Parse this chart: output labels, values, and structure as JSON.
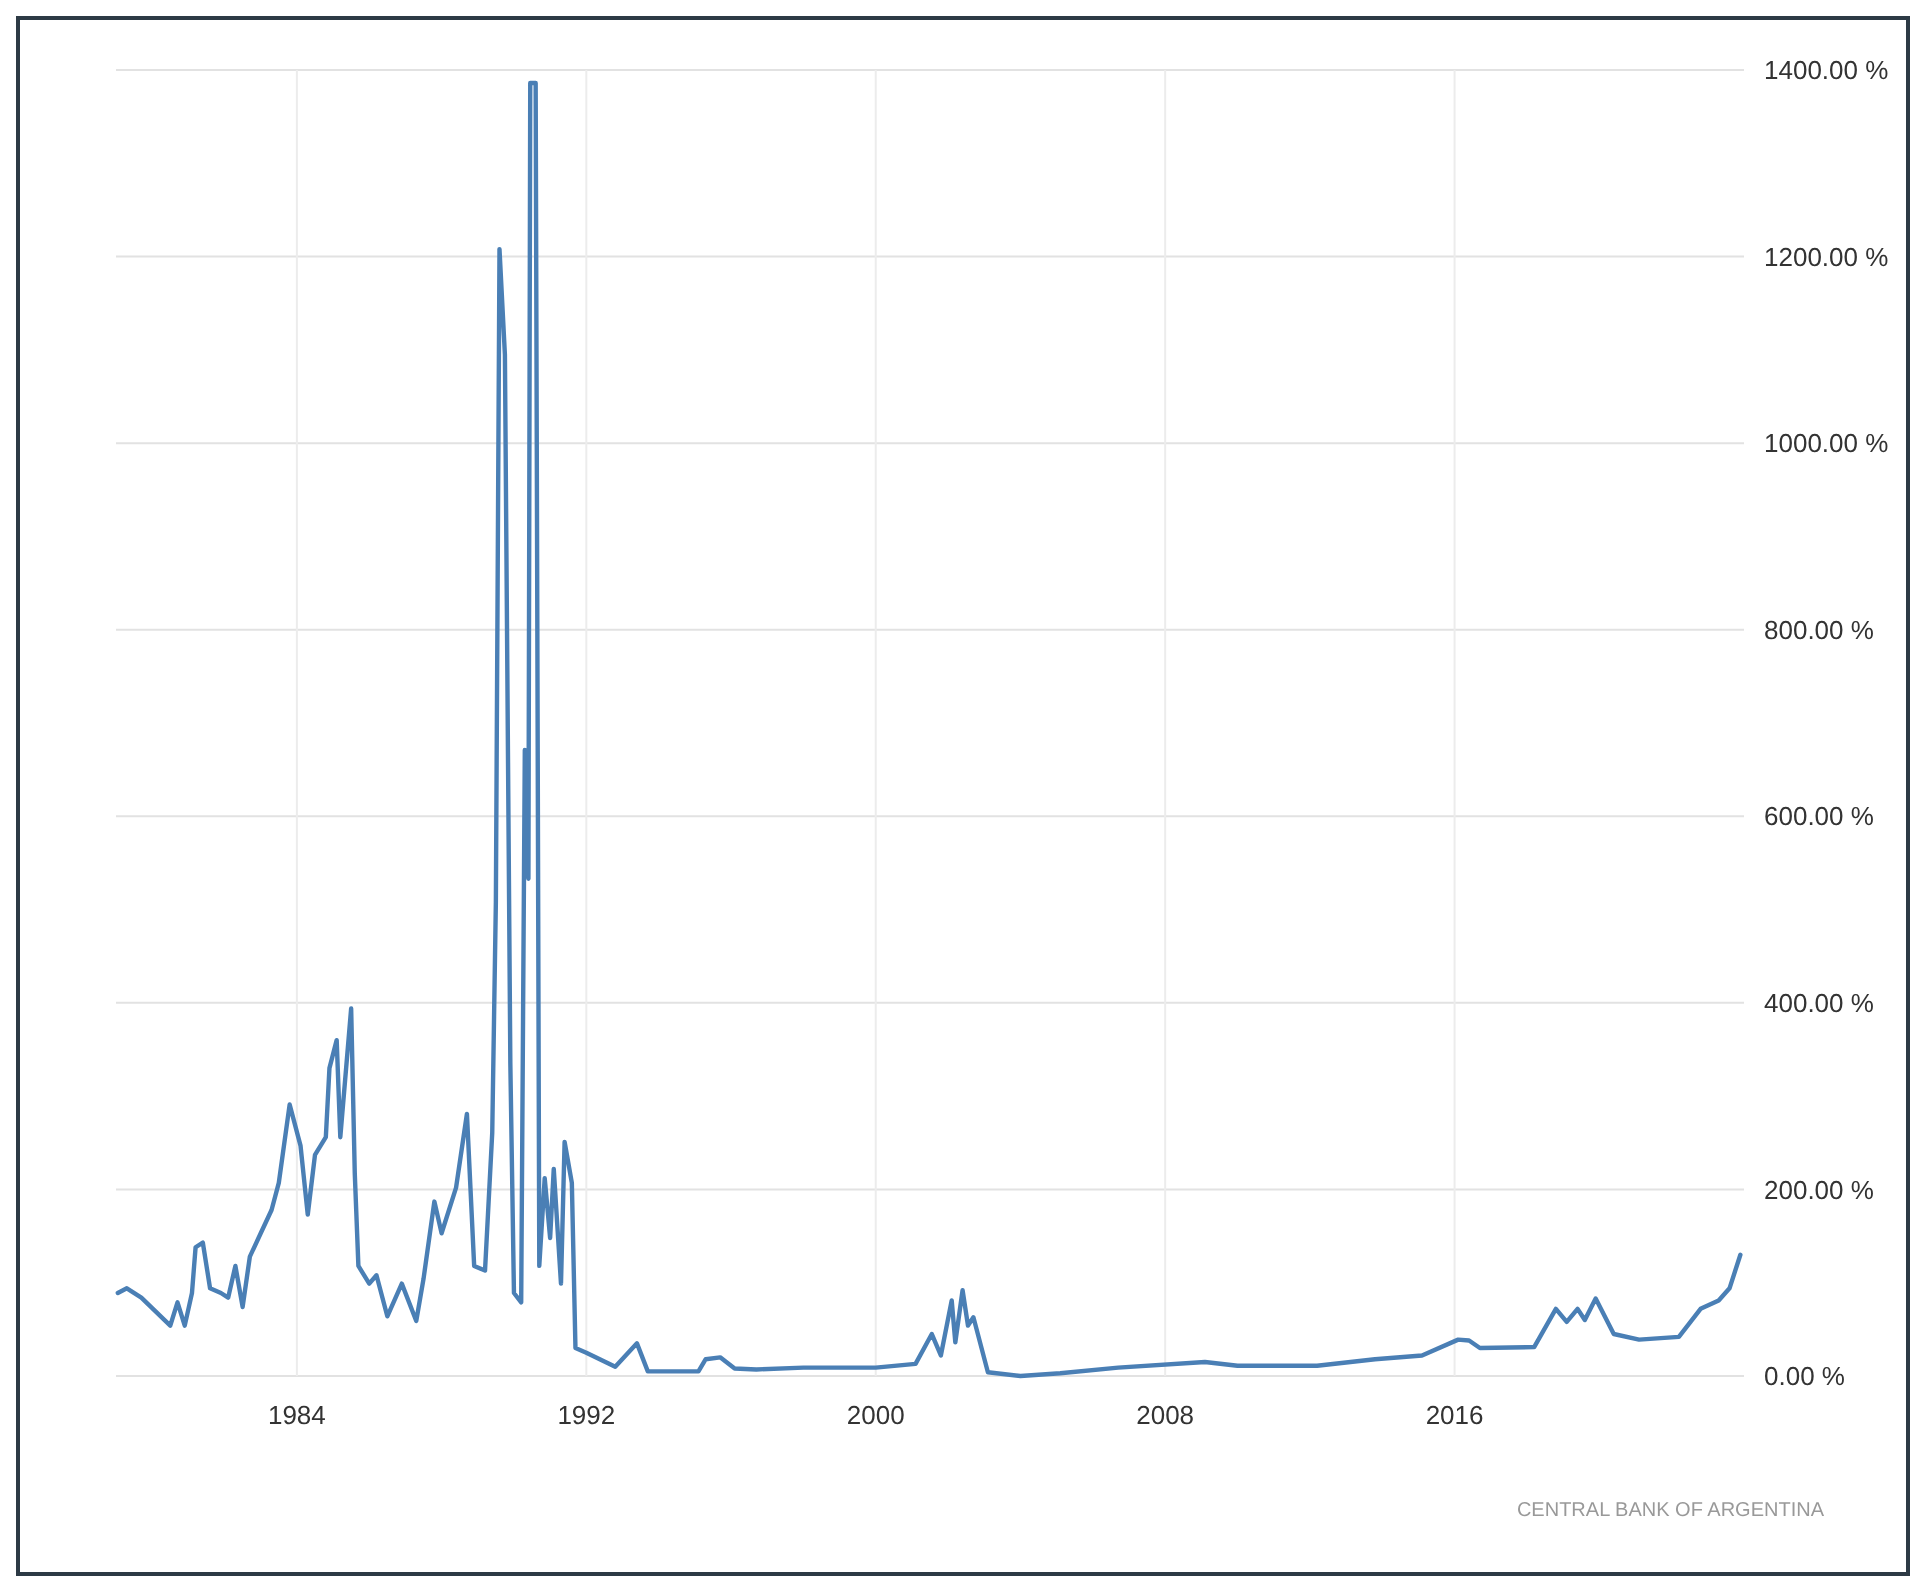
{
  "chart_data": {
    "type": "line",
    "x": [
      1979.05,
      1979.3,
      1979.7,
      1980.1,
      1980.5,
      1980.7,
      1980.9,
      1981.1,
      1981.2,
      1981.4,
      1981.6,
      1981.9,
      1982.1,
      1982.3,
      1982.5,
      1982.7,
      1983.0,
      1983.3,
      1983.5,
      1983.8,
      1984.1,
      1984.3,
      1984.5,
      1984.8,
      1984.9,
      1985.1,
      1985.2,
      1985.5,
      1985.6,
      1985.7,
      1986.0,
      1986.2,
      1986.5,
      1986.9,
      1987.3,
      1987.5,
      1987.8,
      1988.0,
      1988.4,
      1988.7,
      1988.9,
      1989.2,
      1989.4,
      1989.5,
      1989.6,
      1989.75,
      1989.9,
      1990.0,
      1990.2,
      1990.3,
      1990.4,
      1990.45,
      1990.6,
      1990.7,
      1990.85,
      1991.0,
      1991.1,
      1991.3,
      1991.4,
      1991.6,
      1991.7,
      1992.0,
      1992.8,
      1993.4,
      1993.7,
      1995.1,
      1995.3,
      1995.7,
      1996.1,
      1996.7,
      1998.0,
      2000.0,
      2001.1,
      2001.55,
      2001.8,
      2002.1,
      2002.2,
      2002.4,
      2002.55,
      2002.7,
      2003.1,
      2004.0,
      2005.1,
      2006.7,
      2009.1,
      2010.0,
      2012.2,
      2013.8,
      2015.1,
      2016.1,
      2016.4,
      2016.7,
      2018.2,
      2018.8,
      2019.1,
      2019.4,
      2019.6,
      2019.9,
      2020.4,
      2021.1,
      2022.2,
      2022.8,
      2023.3,
      2023.6,
      2023.9
    ],
    "series": [
      {
        "color": "#4a7fb5",
        "values": [
          89,
          94,
          84,
          69,
          54,
          79,
          54,
          89,
          138,
          143,
          94,
          89,
          84,
          118,
          74,
          128,
          153,
          178,
          207,
          291,
          247,
          173,
          237,
          256,
          330,
          360,
          256,
          394,
          217,
          118,
          99,
          108,
          64,
          99,
          59,
          104,
          187,
          153,
          202,
          281,
          118,
          113,
          261,
          508,
          1208,
          1095,
          335,
          89,
          79,
          671,
          533,
          1386,
          1386,
          118,
          212,
          148,
          222,
          99,
          251,
          207,
          30,
          25,
          10,
          35,
          5,
          5,
          18,
          20,
          8,
          7,
          9,
          9,
          13,
          45,
          22,
          81,
          36,
          92,
          54,
          63,
          4,
          0,
          3,
          9,
          15,
          11,
          11,
          18,
          22,
          39,
          38,
          30,
          31,
          72,
          58,
          72,
          60,
          83,
          45,
          39,
          42,
          72,
          81,
          94,
          130
        ]
      }
    ],
    "xlim": [
      1979,
      2024
    ],
    "xticks": [
      1984,
      1992,
      2000,
      2008,
      2016
    ],
    "ylim": [
      0,
      1400
    ],
    "yticks": [
      {
        "value": 0,
        "label": "0.00 %"
      },
      {
        "value": 200,
        "label": "200.00 %"
      },
      {
        "value": 400,
        "label": "400.00 %"
      },
      {
        "value": 600,
        "label": "600.00 %"
      },
      {
        "value": 800,
        "label": "800.00 %"
      },
      {
        "value": 1000,
        "label": "1000.00 %"
      },
      {
        "value": 1200,
        "label": "1200.00 %"
      },
      {
        "value": 1400,
        "label": "1400.00 %"
      }
    ],
    "grid": true,
    "line_style": "solid",
    "marker": "none",
    "annotations": [
      "CENTRAL BANK OF ARGENTINA"
    ]
  }
}
